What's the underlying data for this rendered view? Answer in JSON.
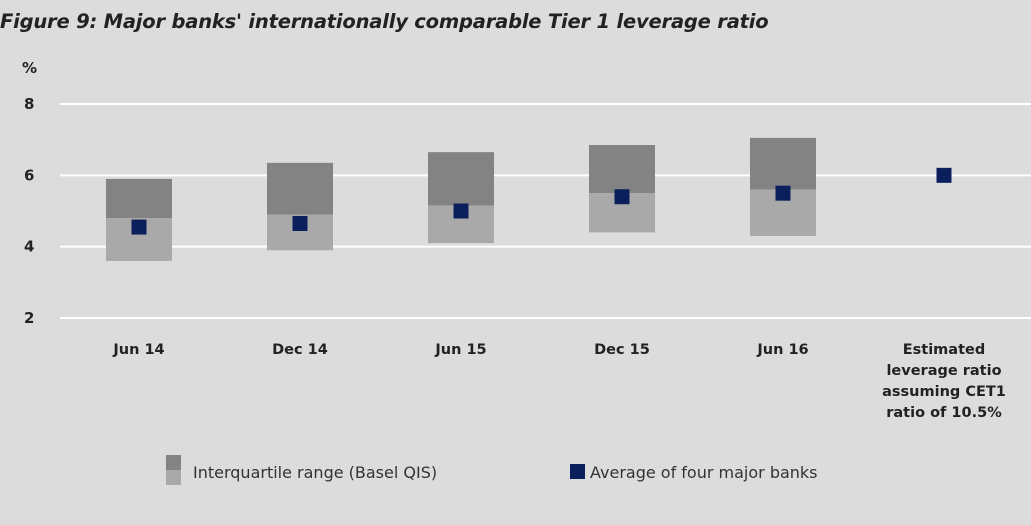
{
  "chart_data": {
    "type": "box-range",
    "title": "Figure 9: Major banks' internationally comparable Tier 1 leverage ratio",
    "ylabel": "%",
    "ylim": [
      2,
      8
    ],
    "yticks": [
      2,
      4,
      6,
      8
    ],
    "grid": true,
    "categories": [
      [
        "Jun 14"
      ],
      [
        "Dec 14"
      ],
      [
        "Jun 15"
      ],
      [
        "Dec 15"
      ],
      [
        "Jun 16"
      ],
      [
        "Estimated",
        "leverage ratio",
        "assuming CET1",
        "ratio of 10.5%"
      ]
    ],
    "series": [
      {
        "name": "Interquartile range (Basel QIS)",
        "lower": [
          3.6,
          3.9,
          4.1,
          4.4,
          4.3,
          null
        ],
        "median": [
          4.8,
          4.9,
          5.15,
          5.5,
          5.6,
          null
        ],
        "upper": [
          5.9,
          6.35,
          6.65,
          6.85,
          7.05,
          null
        ]
      },
      {
        "name": "Average of four major banks",
        "values": [
          4.55,
          4.65,
          5.0,
          5.4,
          5.5,
          6.0
        ]
      }
    ],
    "legend_position": "bottom",
    "colors": {
      "iqr_upper": "#838383",
      "iqr_lower": "#a9a9a9",
      "average": "#0a1f5c",
      "grid": "#ffffff"
    }
  }
}
